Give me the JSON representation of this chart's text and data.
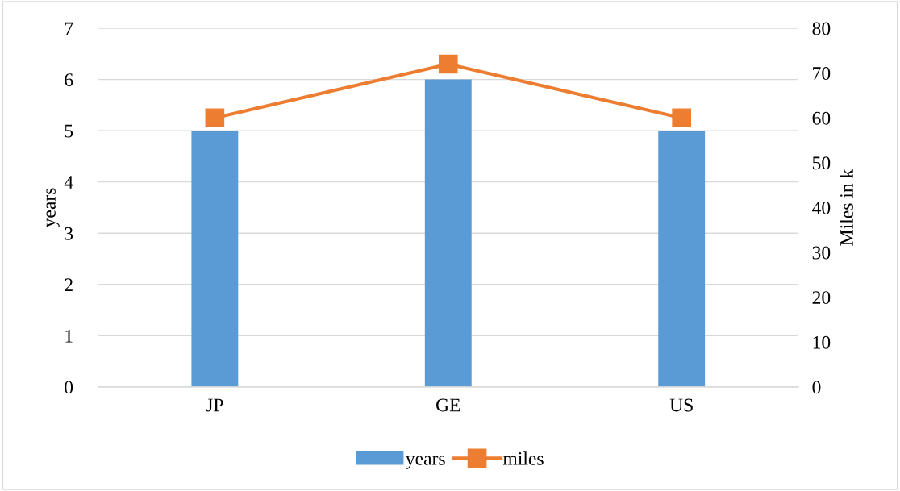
{
  "chart_data": {
    "type": "bar",
    "categories": [
      "JP",
      "GE",
      "US"
    ],
    "ylabel": "years",
    "y2label": "Miles in k",
    "series": [
      {
        "name": "years",
        "color": "#5b9bd5",
        "values": [
          5,
          6,
          5
        ]
      },
      {
        "name": "miles",
        "type": "line",
        "axis": "y2",
        "color": "#ed7d31",
        "marker": "square",
        "values": [
          60,
          72,
          60
        ]
      }
    ],
    "ylim": [
      0,
      7
    ],
    "yticks": [
      0,
      1,
      2,
      3,
      4,
      5,
      6,
      7
    ],
    "y2lim": [
      0,
      80
    ],
    "y2ticks": [
      0,
      10,
      20,
      30,
      40,
      50,
      60,
      70,
      80
    ],
    "grid": "y",
    "legend": "bottom"
  }
}
